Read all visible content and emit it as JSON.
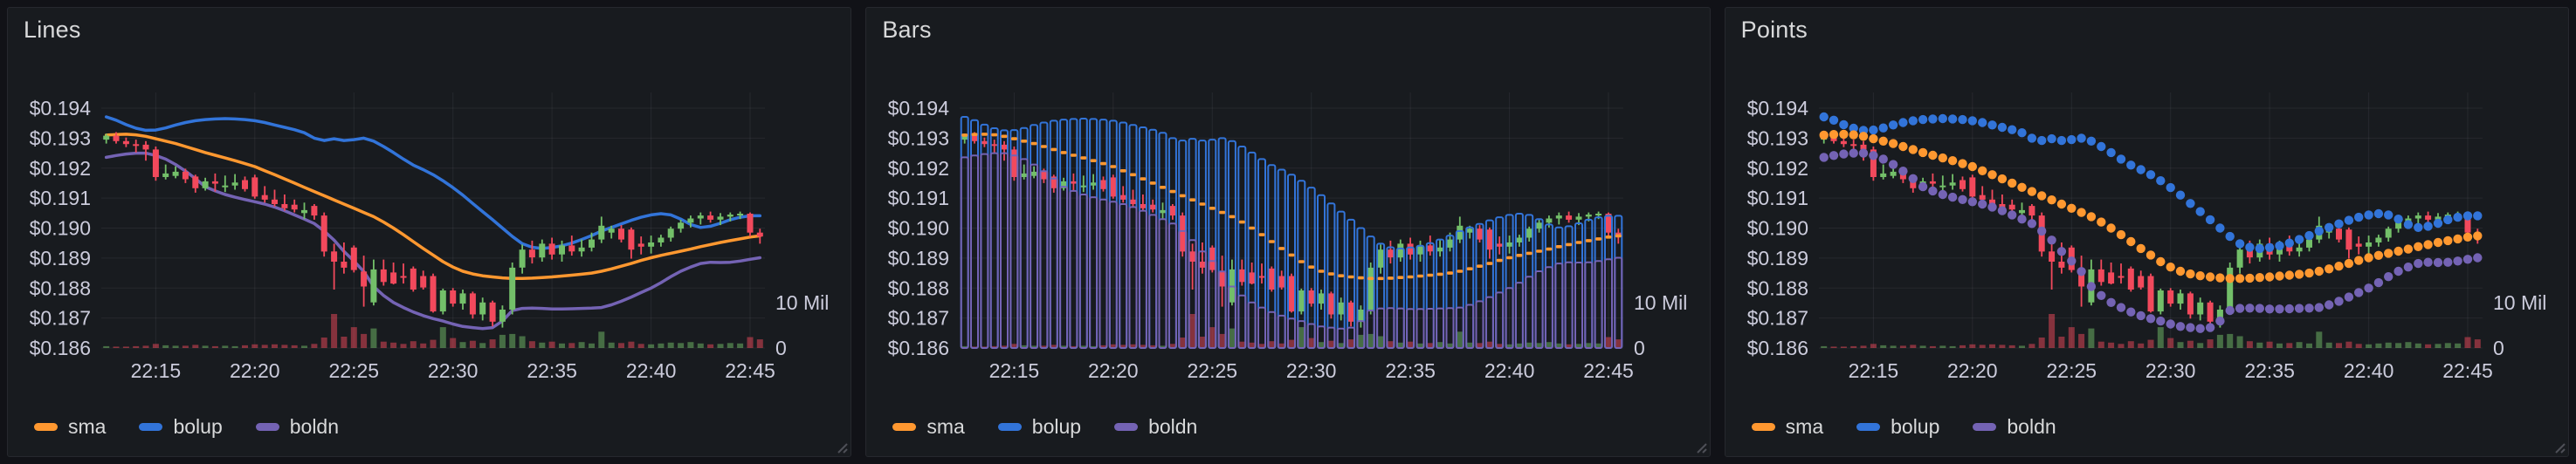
{
  "panels": [
    {
      "title": "Lines",
      "overlay_style": "line"
    },
    {
      "title": "Bars",
      "overlay_style": "bars"
    },
    {
      "title": "Points",
      "overlay_style": "points"
    }
  ],
  "legend": {
    "items": [
      {
        "label": "sma",
        "color": "#FF9830"
      },
      {
        "label": "bolup",
        "color": "#3274D9"
      },
      {
        "label": "boldn",
        "color": "#7463B4"
      }
    ]
  },
  "chart_data": {
    "type": "candlestick",
    "start_time": "22:12:30",
    "interval_seconds": 30,
    "x_axis": {
      "tick_labels": [
        "22:15",
        "22:20",
        "22:25",
        "22:30",
        "22:35",
        "22:40",
        "22:45"
      ],
      "tick_indices": [
        5,
        15,
        25,
        35,
        45,
        55,
        65
      ]
    },
    "y_axis": {
      "prefix": "$",
      "range": [
        0.186,
        0.194
      ],
      "tick_values": [
        0.194,
        0.193,
        0.192,
        0.191,
        0.19,
        0.189,
        0.188,
        0.187,
        0.186
      ]
    },
    "right_axis": {
      "unit": "volume",
      "ticks": [
        {
          "label": "10 Mil",
          "value_mil": 10
        },
        {
          "label": "0",
          "value_mil": 0
        }
      ]
    },
    "colors": {
      "up": "#73BF69",
      "down": "#F2495C",
      "volume_up": "rgba(115,191,105,0.5)",
      "volume_down": "rgba(242,73,92,0.5)"
    },
    "legend_position": "bottom",
    "grid": true,
    "candles_ohlcv_mil": [
      [
        0.19295,
        0.19315,
        0.19282,
        0.19308,
        0.4
      ],
      [
        0.19308,
        0.1932,
        0.19282,
        0.1929,
        0.3
      ],
      [
        0.1929,
        0.19302,
        0.1927,
        0.1928,
        0.3
      ],
      [
        0.1928,
        0.19295,
        0.19252,
        0.19278,
        0.4
      ],
      [
        0.19278,
        0.1929,
        0.19225,
        0.19262,
        0.5
      ],
      [
        0.19262,
        0.19272,
        0.19158,
        0.1917,
        0.9
      ],
      [
        0.1917,
        0.19212,
        0.19162,
        0.19182,
        0.6
      ],
      [
        0.19174,
        0.19206,
        0.19166,
        0.19188,
        0.5
      ],
      [
        0.19188,
        0.19198,
        0.1915,
        0.19163,
        0.5
      ],
      [
        0.19172,
        0.19178,
        0.19118,
        0.19133,
        0.7
      ],
      [
        0.19133,
        0.19168,
        0.19125,
        0.19156,
        0.5
      ],
      [
        0.19156,
        0.19182,
        0.19122,
        0.19148,
        0.4
      ],
      [
        0.1914,
        0.19175,
        0.1912,
        0.19142,
        0.5
      ],
      [
        0.19142,
        0.1918,
        0.19128,
        0.19152,
        0.4
      ],
      [
        0.1916,
        0.19172,
        0.19122,
        0.1913,
        0.6
      ],
      [
        0.19169,
        0.19178,
        0.19098,
        0.19105,
        0.8
      ],
      [
        0.1911,
        0.1914,
        0.19085,
        0.19095,
        0.7
      ],
      [
        0.19095,
        0.19128,
        0.19072,
        0.1908,
        0.8
      ],
      [
        0.1908,
        0.19112,
        0.19058,
        0.19066,
        0.7
      ],
      [
        0.19078,
        0.19095,
        0.19052,
        0.19062,
        0.6
      ],
      [
        0.1905,
        0.19085,
        0.1903,
        0.1906,
        0.5
      ],
      [
        0.19074,
        0.1908,
        0.19028,
        0.19042,
        0.9
      ],
      [
        0.19042,
        0.19052,
        0.18905,
        0.18922,
        2.3
      ],
      [
        0.18922,
        0.18948,
        0.18795,
        0.18888,
        7.5
      ],
      [
        0.18888,
        0.18952,
        0.18848,
        0.18868,
        2.5
      ],
      [
        0.18935,
        0.18942,
        0.18852,
        0.1886,
        4.6
      ],
      [
        0.18855,
        0.18908,
        0.18738,
        0.18805,
        3.1
      ],
      [
        0.18752,
        0.18895,
        0.18742,
        0.18862,
        4.3
      ],
      [
        0.18862,
        0.18895,
        0.18808,
        0.1882,
        1.4
      ],
      [
        0.18852,
        0.18885,
        0.18812,
        0.18815,
        1.2
      ],
      [
        0.1884,
        0.18882,
        0.18815,
        0.18838,
        0.9
      ],
      [
        0.18865,
        0.18872,
        0.18788,
        0.18795,
        1.5
      ],
      [
        0.1884,
        0.18858,
        0.18795,
        0.18802,
        1.0
      ],
      [
        0.1884,
        0.18848,
        0.18718,
        0.18722,
        1.8
      ],
      [
        0.18722,
        0.18798,
        0.18712,
        0.18792,
        4.6
      ],
      [
        0.18792,
        0.188,
        0.18738,
        0.18748,
        2.2
      ],
      [
        0.18748,
        0.18795,
        0.18728,
        0.18782,
        1.3
      ],
      [
        0.18782,
        0.18788,
        0.18698,
        0.18712,
        1.6
      ],
      [
        0.18712,
        0.18768,
        0.18692,
        0.18752,
        1.1
      ],
      [
        0.18752,
        0.18758,
        0.18672,
        0.18688,
        1.9
      ],
      [
        0.18688,
        0.18742,
        0.18668,
        0.18728,
        2.9
      ],
      [
        0.18728,
        0.18885,
        0.18712,
        0.18868,
        3.1
      ],
      [
        0.18868,
        0.18945,
        0.18848,
        0.18928,
        2.6
      ],
      [
        0.18928,
        0.18958,
        0.18882,
        0.18902,
        1.5
      ],
      [
        0.18902,
        0.18962,
        0.18888,
        0.18948,
        1.2
      ],
      [
        0.18948,
        0.18968,
        0.18895,
        0.18912,
        1.4
      ],
      [
        0.18912,
        0.18958,
        0.18888,
        0.18942,
        1.0
      ],
      [
        0.18942,
        0.18975,
        0.18908,
        0.18922,
        1.1
      ],
      [
        0.18922,
        0.18962,
        0.18905,
        0.18935,
        1.3
      ],
      [
        0.18935,
        0.18985,
        0.18922,
        0.18962,
        1.0
      ],
      [
        0.18962,
        0.19038,
        0.1895,
        0.19008,
        3.6
      ],
      [
        0.18985,
        0.19008,
        0.18965,
        0.18998,
        1.2
      ],
      [
        0.18998,
        0.1901,
        0.18952,
        0.18962,
        1.1
      ],
      [
        0.18995,
        0.19002,
        0.18898,
        0.18928,
        1.4
      ],
      [
        0.18948,
        0.18972,
        0.18912,
        0.18938,
        0.9
      ],
      [
        0.18938,
        0.18975,
        0.18915,
        0.18952,
        0.8
      ],
      [
        0.18952,
        0.18978,
        0.18938,
        0.18968,
        1.0
      ],
      [
        0.18968,
        0.19005,
        0.18955,
        0.18998,
        1.2
      ],
      [
        0.18998,
        0.19028,
        0.18985,
        0.19018,
        1.1
      ],
      [
        0.19018,
        0.19042,
        0.19002,
        0.19032,
        1.3
      ],
      [
        0.19032,
        0.19052,
        0.19012,
        0.19042,
        1.0
      ],
      [
        0.19042,
        0.19055,
        0.19018,
        0.19028,
        0.8
      ],
      [
        0.19028,
        0.1905,
        0.1901,
        0.19038,
        0.9
      ],
      [
        0.19038,
        0.19052,
        0.19022,
        0.19045,
        1.1
      ],
      [
        0.19045,
        0.19055,
        0.1903,
        0.19048,
        1.0
      ],
      [
        0.19048,
        0.19052,
        0.18972,
        0.18985,
        2.4
      ],
      [
        0.18985,
        0.18998,
        0.18948,
        0.18972,
        1.9
      ]
    ],
    "series": [
      {
        "name": "sma",
        "color": "#FF9830",
        "values": [
          0.1931,
          0.19312,
          0.19313,
          0.19311,
          0.19306,
          0.19298,
          0.1929,
          0.19282,
          0.19272,
          0.19262,
          0.19252,
          0.19243,
          0.19234,
          0.19225,
          0.19215,
          0.19205,
          0.19191,
          0.19178,
          0.19164,
          0.1915,
          0.19136,
          0.19122,
          0.19108,
          0.19094,
          0.1908,
          0.19066,
          0.19052,
          0.19038,
          0.1902,
          0.19,
          0.18978,
          0.18955,
          0.18932,
          0.1891,
          0.18888,
          0.1887,
          0.18856,
          0.18847,
          0.18841,
          0.18837,
          0.18834,
          0.18832,
          0.18832,
          0.18833,
          0.18835,
          0.18837,
          0.1884,
          0.18843,
          0.18846,
          0.1885,
          0.18856,
          0.18864,
          0.18873,
          0.18882,
          0.18892,
          0.18901,
          0.18909,
          0.18916,
          0.18923,
          0.1893,
          0.18938,
          0.18945,
          0.18952,
          0.18958,
          0.18964,
          0.1897,
          0.18974
        ]
      },
      {
        "name": "bolup",
        "color": "#3274D9",
        "values": [
          0.19371,
          0.1936,
          0.19345,
          0.19333,
          0.19326,
          0.19327,
          0.19334,
          0.19344,
          0.19352,
          0.19358,
          0.19362,
          0.19364,
          0.19365,
          0.19364,
          0.19362,
          0.19358,
          0.19352,
          0.19344,
          0.19336,
          0.19328,
          0.19318,
          0.193,
          0.19292,
          0.19298,
          0.19292,
          0.19295,
          0.193,
          0.1929,
          0.19272,
          0.19252,
          0.1923,
          0.1921,
          0.19195,
          0.19178,
          0.19158,
          0.19135,
          0.1911,
          0.19082,
          0.19055,
          0.19028,
          0.19,
          0.18972,
          0.18948,
          0.18936,
          0.18932,
          0.18935,
          0.18941,
          0.1895,
          0.18962,
          0.18975,
          0.1899,
          0.19002,
          0.19014,
          0.19026,
          0.19036,
          0.19044,
          0.19048,
          0.19044,
          0.1903,
          0.19012,
          0.19002,
          0.19006,
          0.19016,
          0.19028,
          0.19036,
          0.19041,
          0.19041
        ]
      },
      {
        "name": "boldn",
        "color": "#7463B4",
        "values": [
          0.19236,
          0.19242,
          0.19247,
          0.1925,
          0.1925,
          0.19242,
          0.1923,
          0.19212,
          0.1919,
          0.19165,
          0.19138,
          0.19124,
          0.19112,
          0.19103,
          0.19095,
          0.19088,
          0.1908,
          0.1907,
          0.19058,
          0.19044,
          0.1903,
          0.19015,
          0.1899,
          0.1896,
          0.18922,
          0.1889,
          0.18855,
          0.18805,
          0.18775,
          0.18752,
          0.18735,
          0.1872,
          0.18708,
          0.18698,
          0.1869,
          0.1868,
          0.18672,
          0.18668,
          0.18665,
          0.18668,
          0.1869,
          0.18725,
          0.18732,
          0.18733,
          0.18732,
          0.1873,
          0.1873,
          0.18731,
          0.18732,
          0.18733,
          0.18735,
          0.18744,
          0.18756,
          0.1877,
          0.18785,
          0.188,
          0.18818,
          0.18838,
          0.18856,
          0.1887,
          0.18882,
          0.18886,
          0.18885,
          0.18886,
          0.1889,
          0.18896,
          0.18901
        ]
      }
    ]
  }
}
